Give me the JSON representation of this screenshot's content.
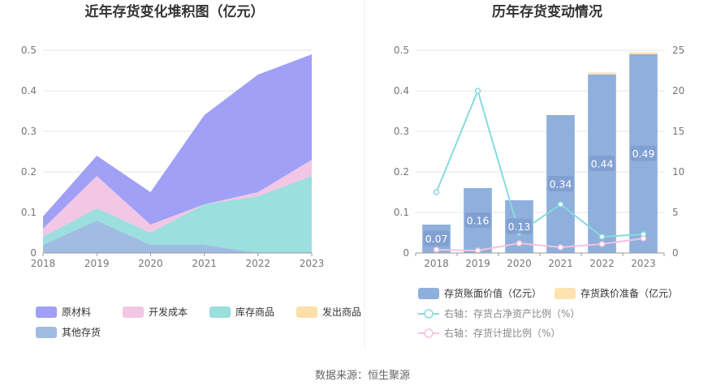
{
  "footer": {
    "source": "数据来源：恒生聚源"
  },
  "chart_data": [
    {
      "type": "area",
      "stacked": true,
      "title": "近年存货变化堆积图（亿元）",
      "categories": [
        "2018",
        "2019",
        "2020",
        "2021",
        "2022",
        "2023"
      ],
      "ylim": [
        0,
        0.5
      ],
      "yticks": [
        "0",
        "0.1",
        "0.2",
        "0.3",
        "0.4",
        "0.5"
      ],
      "grid": true,
      "legend_position": "bottom",
      "series": [
        {
          "name": "其他存货",
          "color": "#8fb0de",
          "values": [
            0.02,
            0.08,
            0.02,
            0.02,
            0.0,
            0.0
          ]
        },
        {
          "name": "库存商品",
          "color": "#8ad9d9",
          "values": [
            0.02,
            0.03,
            0.03,
            0.1,
            0.14,
            0.19
          ]
        },
        {
          "name": "开发成本",
          "color": "#efbde0",
          "values": [
            0.02,
            0.08,
            0.02,
            0.0,
            0.01,
            0.04
          ]
        },
        {
          "name": "原材料",
          "color": "#8f8ff5",
          "values": [
            0.03,
            0.05,
            0.08,
            0.22,
            0.29,
            0.26
          ]
        },
        {
          "name": "发出商品",
          "color": "#fcd99a",
          "values": [
            0.0,
            0.0,
            0.0,
            0.0,
            0.0,
            0.0
          ]
        }
      ],
      "legend_order": [
        "原材料",
        "开发成本",
        "库存商品",
        "发出商品",
        "其他存货"
      ]
    },
    {
      "type": "bar",
      "title": "历年存货变动情况",
      "categories": [
        "2018",
        "2019",
        "2020",
        "2021",
        "2022",
        "2023"
      ],
      "ylim": [
        0,
        0.5
      ],
      "yticks": [
        "0",
        "0.1",
        "0.2",
        "0.3",
        "0.4",
        "0.5"
      ],
      "y2lim": [
        0,
        25
      ],
      "y2ticks": [
        "0",
        "5",
        "10",
        "15",
        "20",
        "25"
      ],
      "grid": true,
      "legend_position": "bottom",
      "bars": [
        {
          "name": "存货账面价值（亿元）",
          "color": "#8fafdc",
          "values": [
            0.07,
            0.16,
            0.13,
            0.34,
            0.44,
            0.49
          ],
          "labels": [
            "0.07",
            "0.16",
            "0.13",
            "0.34",
            "0.44",
            "0.49"
          ]
        },
        {
          "name": "存货跌价准备（亿元）",
          "color": "#fde3b0",
          "values": [
            0.0,
            0.0,
            0.0,
            0.0,
            0.005,
            0.005
          ]
        }
      ],
      "lines": [
        {
          "name": "右轴：存货占净资产比例（%）",
          "color": "#86dbe0",
          "values": [
            7.5,
            20.0,
            2.5,
            6.0,
            2.0,
            2.3
          ]
        },
        {
          "name": "右轴：存货计提比例（%）",
          "color": "#f3c2e0",
          "values": [
            0.4,
            0.3,
            1.2,
            0.7,
            1.1,
            1.8
          ]
        }
      ]
    }
  ]
}
